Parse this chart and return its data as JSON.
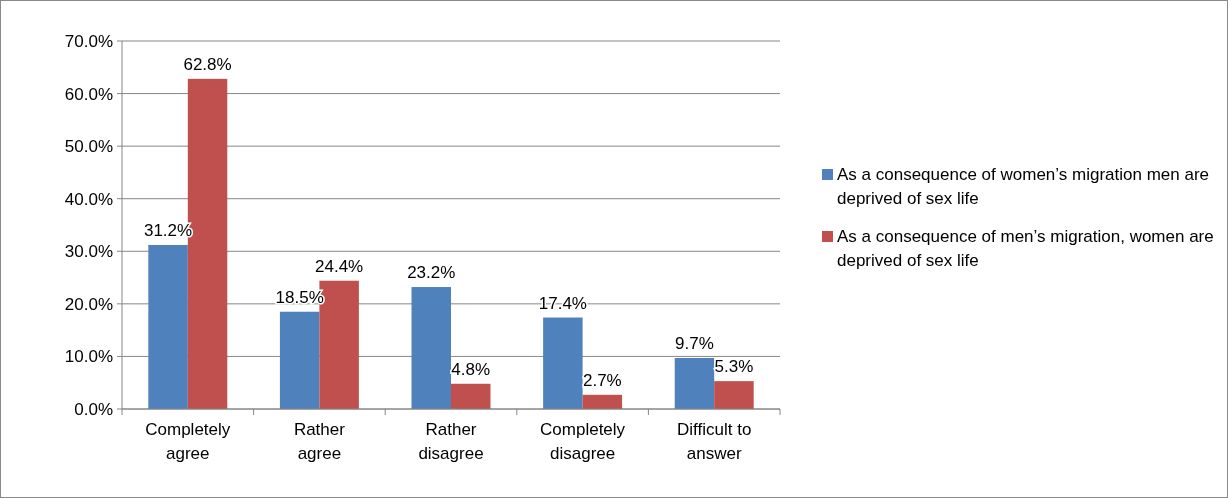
{
  "chart_data": {
    "type": "bar",
    "categories": [
      "Completely agree",
      "Rather agree",
      "Rather disagree",
      "Completely disagree",
      "Difficult to answer"
    ],
    "series": [
      {
        "name": "As a consequence of women’s migration men are deprived of sex life",
        "color": "#4f81bd",
        "values": [
          31.2,
          18.5,
          23.2,
          17.4,
          9.7
        ],
        "value_labels": [
          "31.2%",
          "18.5%",
          "23.2%",
          "17.4%",
          "9.7%"
        ]
      },
      {
        "name": "As a consequence of men’s migration, women are deprived of sex life",
        "color": "#c0504d",
        "values": [
          62.8,
          24.4,
          4.8,
          2.7,
          5.3
        ],
        "value_labels": [
          "62.8%",
          "24.4%",
          "4.8%",
          "2.7%",
          "5.3%"
        ]
      }
    ],
    "ylim": [
      0,
      70
    ],
    "yticks": [
      {
        "value": 0,
        "label": "0.0%"
      },
      {
        "value": 10,
        "label": "10.0%"
      },
      {
        "value": 20,
        "label": "20.0%"
      },
      {
        "value": 30,
        "label": "30.0%"
      },
      {
        "value": 40,
        "label": "40.0%"
      },
      {
        "value": 50,
        "label": "50.0%"
      },
      {
        "value": 60,
        "label": "60.0%"
      },
      {
        "value": 70,
        "label": "70.0%"
      }
    ],
    "grid": "y",
    "legend": "right"
  }
}
